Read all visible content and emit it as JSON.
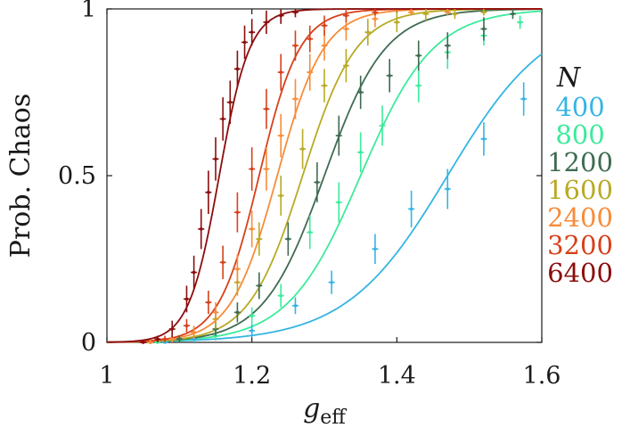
{
  "chart_data": {
    "type": "line",
    "title": "",
    "xlabel": "g",
    "xlabel_sub": "eff",
    "ylabel": "Prob. Chaos",
    "xlim": [
      1.0,
      1.6
    ],
    "ylim": [
      0,
      1
    ],
    "x_ticks": [
      1.0,
      1.2,
      1.4,
      1.6
    ],
    "x_tick_labels": [
      "1",
      "1.2",
      "1.4",
      "1.6"
    ],
    "y_ticks": [
      0,
      0.5,
      1
    ],
    "y_tick_labels": [
      "0",
      "0.5",
      "1"
    ],
    "grid": false,
    "legend": {
      "title": "N",
      "position": "right"
    },
    "series": [
      {
        "name": "400",
        "color": "#35b5e3",
        "fit_mid": 1.47,
        "fit_width": 0.07,
        "points": [
          {
            "x": 1.08,
            "y": 0.0,
            "e": 0.005
          },
          {
            "x": 1.12,
            "y": 0.01,
            "e": 0.012
          },
          {
            "x": 1.2,
            "y": 0.035,
            "e": 0.02
          },
          {
            "x": 1.26,
            "y": 0.11,
            "e": 0.025
          },
          {
            "x": 1.31,
            "y": 0.18,
            "e": 0.035
          },
          {
            "x": 1.37,
            "y": 0.28,
            "e": 0.045
          },
          {
            "x": 1.42,
            "y": 0.4,
            "e": 0.055
          },
          {
            "x": 1.47,
            "y": 0.46,
            "e": 0.06
          },
          {
            "x": 1.52,
            "y": 0.61,
            "e": 0.05
          },
          {
            "x": 1.575,
            "y": 0.73,
            "e": 0.05
          }
        ]
      },
      {
        "name": "800",
        "color": "#3ceb9a",
        "fit_mid": 1.35,
        "fit_width": 0.05,
        "points": [
          {
            "x": 1.07,
            "y": 0.0,
            "e": 0.005
          },
          {
            "x": 1.1,
            "y": 0.01,
            "e": 0.01
          },
          {
            "x": 1.15,
            "y": 0.02,
            "e": 0.015
          },
          {
            "x": 1.2,
            "y": 0.08,
            "e": 0.025
          },
          {
            "x": 1.24,
            "y": 0.14,
            "e": 0.035
          },
          {
            "x": 1.28,
            "y": 0.33,
            "e": 0.05
          },
          {
            "x": 1.32,
            "y": 0.42,
            "e": 0.06
          },
          {
            "x": 1.35,
            "y": 0.57,
            "e": 0.06
          },
          {
            "x": 1.38,
            "y": 0.65,
            "e": 0.06
          },
          {
            "x": 1.43,
            "y": 0.77,
            "e": 0.05
          },
          {
            "x": 1.47,
            "y": 0.87,
            "e": 0.05
          },
          {
            "x": 1.52,
            "y": 0.92,
            "e": 0.03
          },
          {
            "x": 1.57,
            "y": 0.96,
            "e": 0.02
          }
        ]
      },
      {
        "name": "1200",
        "color": "#3f6b52",
        "fit_mid": 1.3,
        "fit_width": 0.042,
        "points": [
          {
            "x": 1.06,
            "y": 0.0,
            "e": 0.005
          },
          {
            "x": 1.1,
            "y": 0.01,
            "e": 0.01
          },
          {
            "x": 1.15,
            "y": 0.04,
            "e": 0.02
          },
          {
            "x": 1.18,
            "y": 0.09,
            "e": 0.03
          },
          {
            "x": 1.21,
            "y": 0.17,
            "e": 0.04
          },
          {
            "x": 1.25,
            "y": 0.31,
            "e": 0.05
          },
          {
            "x": 1.29,
            "y": 0.48,
            "e": 0.06
          },
          {
            "x": 1.32,
            "y": 0.62,
            "e": 0.06
          },
          {
            "x": 1.35,
            "y": 0.75,
            "e": 0.05
          },
          {
            "x": 1.39,
            "y": 0.8,
            "e": 0.05
          },
          {
            "x": 1.43,
            "y": 0.86,
            "e": 0.045
          },
          {
            "x": 1.47,
            "y": 0.89,
            "e": 0.04
          },
          {
            "x": 1.52,
            "y": 0.94,
            "e": 0.035
          },
          {
            "x": 1.56,
            "y": 0.985,
            "e": 0.015
          }
        ]
      },
      {
        "name": "1600",
        "color": "#b8aa24",
        "fit_mid": 1.27,
        "fit_width": 0.037,
        "points": [
          {
            "x": 1.06,
            "y": 0.0,
            "e": 0.005
          },
          {
            "x": 1.09,
            "y": 0.01,
            "e": 0.01
          },
          {
            "x": 1.12,
            "y": 0.03,
            "e": 0.015
          },
          {
            "x": 1.15,
            "y": 0.07,
            "e": 0.03
          },
          {
            "x": 1.18,
            "y": 0.18,
            "e": 0.04
          },
          {
            "x": 1.21,
            "y": 0.31,
            "e": 0.05
          },
          {
            "x": 1.24,
            "y": 0.44,
            "e": 0.06
          },
          {
            "x": 1.27,
            "y": 0.58,
            "e": 0.06
          },
          {
            "x": 1.3,
            "y": 0.77,
            "e": 0.05
          },
          {
            "x": 1.33,
            "y": 0.83,
            "e": 0.05
          },
          {
            "x": 1.36,
            "y": 0.93,
            "e": 0.04
          },
          {
            "x": 1.4,
            "y": 0.96,
            "e": 0.03
          },
          {
            "x": 1.44,
            "y": 0.985,
            "e": 0.02
          },
          {
            "x": 1.48,
            "y": 0.985,
            "e": 0.015
          },
          {
            "x": 1.52,
            "y": 0.99,
            "e": 0.01
          }
        ]
      },
      {
        "name": "2400",
        "color": "#f78c3a",
        "fit_mid": 1.235,
        "fit_width": 0.032,
        "points": [
          {
            "x": 1.06,
            "y": 0.0,
            "e": 0.005
          },
          {
            "x": 1.09,
            "y": 0.01,
            "e": 0.01
          },
          {
            "x": 1.12,
            "y": 0.03,
            "e": 0.02
          },
          {
            "x": 1.15,
            "y": 0.09,
            "e": 0.03
          },
          {
            "x": 1.18,
            "y": 0.22,
            "e": 0.045
          },
          {
            "x": 1.2,
            "y": 0.34,
            "e": 0.055
          },
          {
            "x": 1.22,
            "y": 0.52,
            "e": 0.065
          },
          {
            "x": 1.24,
            "y": 0.62,
            "e": 0.065
          },
          {
            "x": 1.26,
            "y": 0.73,
            "e": 0.06
          },
          {
            "x": 1.28,
            "y": 0.81,
            "e": 0.055
          },
          {
            "x": 1.3,
            "y": 0.89,
            "e": 0.045
          },
          {
            "x": 1.33,
            "y": 0.94,
            "e": 0.035
          },
          {
            "x": 1.37,
            "y": 0.97,
            "e": 0.025
          },
          {
            "x": 1.42,
            "y": 0.99,
            "e": 0.01
          },
          {
            "x": 1.47,
            "y": 0.99,
            "e": 0.01
          }
        ]
      },
      {
        "name": "3200",
        "color": "#d8401a",
        "fit_mid": 1.21,
        "fit_width": 0.028,
        "points": [
          {
            "x": 1.05,
            "y": 0.0,
            "e": 0.005
          },
          {
            "x": 1.08,
            "y": 0.01,
            "e": 0.01
          },
          {
            "x": 1.11,
            "y": 0.05,
            "e": 0.02
          },
          {
            "x": 1.14,
            "y": 0.12,
            "e": 0.035
          },
          {
            "x": 1.16,
            "y": 0.24,
            "e": 0.05
          },
          {
            "x": 1.18,
            "y": 0.39,
            "e": 0.06
          },
          {
            "x": 1.2,
            "y": 0.52,
            "e": 0.065
          },
          {
            "x": 1.22,
            "y": 0.7,
            "e": 0.06
          },
          {
            "x": 1.24,
            "y": 0.81,
            "e": 0.055
          },
          {
            "x": 1.26,
            "y": 0.89,
            "e": 0.045
          },
          {
            "x": 1.28,
            "y": 0.91,
            "e": 0.04
          },
          {
            "x": 1.3,
            "y": 0.95,
            "e": 0.03
          },
          {
            "x": 1.33,
            "y": 0.98,
            "e": 0.02
          },
          {
            "x": 1.37,
            "y": 0.99,
            "e": 0.01
          }
        ]
      },
      {
        "name": "6400",
        "color": "#8b0d0d",
        "fit_mid": 1.155,
        "fit_width": 0.021,
        "points": [
          {
            "x": 1.05,
            "y": 0.0,
            "e": 0.005
          },
          {
            "x": 1.07,
            "y": 0.01,
            "e": 0.01
          },
          {
            "x": 1.09,
            "y": 0.04,
            "e": 0.025
          },
          {
            "x": 1.11,
            "y": 0.13,
            "e": 0.04
          },
          {
            "x": 1.12,
            "y": 0.21,
            "e": 0.05
          },
          {
            "x": 1.13,
            "y": 0.34,
            "e": 0.06
          },
          {
            "x": 1.14,
            "y": 0.45,
            "e": 0.065
          },
          {
            "x": 1.15,
            "y": 0.55,
            "e": 0.065
          },
          {
            "x": 1.16,
            "y": 0.67,
            "e": 0.065
          },
          {
            "x": 1.17,
            "y": 0.72,
            "e": 0.065
          },
          {
            "x": 1.18,
            "y": 0.82,
            "e": 0.055
          },
          {
            "x": 1.19,
            "y": 0.9,
            "e": 0.05
          },
          {
            "x": 1.2,
            "y": 0.93,
            "e": 0.04
          },
          {
            "x": 1.22,
            "y": 0.96,
            "e": 0.035
          },
          {
            "x": 1.24,
            "y": 0.98,
            "e": 0.025
          },
          {
            "x": 1.26,
            "y": 0.99,
            "e": 0.015
          }
        ]
      }
    ]
  }
}
